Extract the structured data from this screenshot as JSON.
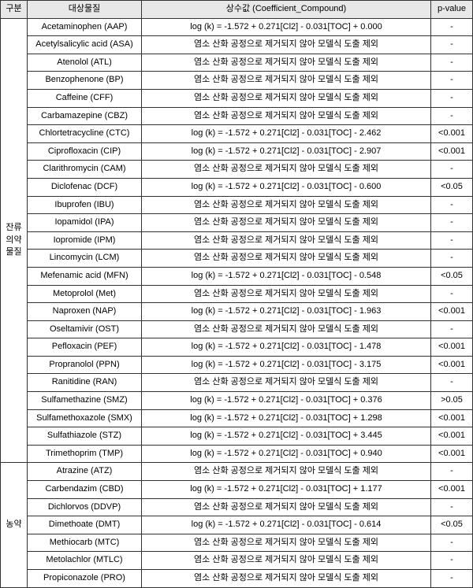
{
  "headers": {
    "category": "구분",
    "compound": "대상물질",
    "coefficient": "상수값 (Coefficient_Compound)",
    "pvalue": "p-value"
  },
  "excluded_text": "염소 산화 공정으로 제거되지 않아 모델식 도출 제외",
  "dash": "-",
  "categories": {
    "pharmaceutical": "잔류\n의약\n물질",
    "pesticide": "농약"
  },
  "pharmaceutical_rows": [
    {
      "compound": "Acetaminophen (AAP)",
      "coeff": "log (k) = -1.572 + 0.271[Cl2] - 0.031[TOC] + 0.000",
      "pvalue": "-"
    },
    {
      "compound": "Acetylsalicylic acid (ASA)",
      "coeff": "염소 산화 공정으로 제거되지 않아 모델식 도출 제외",
      "pvalue": "-"
    },
    {
      "compound": "Atenolol (ATL)",
      "coeff": "염소 산화 공정으로 제거되지 않아 모델식 도출 제외",
      "pvalue": "-"
    },
    {
      "compound": "Benzophenone (BP)",
      "coeff": "염소 산화 공정으로 제거되지 않아 모델식 도출 제외",
      "pvalue": "-"
    },
    {
      "compound": "Caffeine (CFF)",
      "coeff": "염소 산화 공정으로 제거되지 않아 모델식 도출 제외",
      "pvalue": "-"
    },
    {
      "compound": "Carbamazepine (CBZ)",
      "coeff": "염소 산화 공정으로 제거되지 않아 모델식 도출 제외",
      "pvalue": "-"
    },
    {
      "compound": "Chlortetracycline (CTC)",
      "coeff": "log (k) = -1.572 + 0.271[Cl2] - 0.031[TOC] - 2.462",
      "pvalue": "<0.001"
    },
    {
      "compound": "Ciprofloxacin (CIP)",
      "coeff": "log (k) = -1.572 + 0.271[Cl2] - 0.031[TOC] - 2.907",
      "pvalue": "<0.001"
    },
    {
      "compound": "Clarithromycin (CAM)",
      "coeff": "염소 산화 공정으로 제거되지 않아 모델식 도출 제외",
      "pvalue": "-"
    },
    {
      "compound": "Diclofenac (DCF)",
      "coeff": "log (k) = -1.572 + 0.271[Cl2] - 0.031[TOC] - 0.600",
      "pvalue": "<0.05"
    },
    {
      "compound": "Ibuprofen (IBU)",
      "coeff": "염소 산화 공정으로 제거되지 않아 모델식 도출 제외",
      "pvalue": "-"
    },
    {
      "compound": "Iopamidol (IPA)",
      "coeff": "염소 산화 공정으로 제거되지 않아 모델식 도출 제외",
      "pvalue": "-"
    },
    {
      "compound": "Iopromide (IPM)",
      "coeff": "염소 산화 공정으로 제거되지 않아 모델식 도출 제외",
      "pvalue": "-"
    },
    {
      "compound": "Lincomycin (LCM)",
      "coeff": "염소 산화 공정으로 제거되지 않아 모델식 도출 제외",
      "pvalue": "-"
    },
    {
      "compound": "Mefenamic acid (MFN)",
      "coeff": "log (k) = -1.572 + 0.271[Cl2] - 0.031[TOC] - 0.548",
      "pvalue": "<0.05"
    },
    {
      "compound": "Metoprolol (Met)",
      "coeff": "염소 산화 공정으로 제거되지 않아 모델식 도출 제외",
      "pvalue": "-"
    },
    {
      "compound": "Naproxen (NAP)",
      "coeff": "log (k) = -1.572 + 0.271[Cl2] - 0.031[TOC] - 1.963",
      "pvalue": "<0.001"
    },
    {
      "compound": "Oseltamivir (OST)",
      "coeff": "염소 산화 공정으로 제거되지 않아 모델식 도출 제외",
      "pvalue": "-"
    },
    {
      "compound": "Pefloxacin (PEF)",
      "coeff": "log (k) = -1.572 + 0.271[Cl2] - 0.031[TOC] - 1.478",
      "pvalue": "<0.001"
    },
    {
      "compound": "Propranolol (PPN)",
      "coeff": "log (k) = -1.572 + 0.271[Cl2] - 0.031[TOC] - 3.175",
      "pvalue": "<0.001"
    },
    {
      "compound": "Ranitidine (RAN)",
      "coeff": "염소 산화 공정으로 제거되지 않아 모델식 도출 제외",
      "pvalue": "-"
    },
    {
      "compound": "Sulfamethazine (SMZ)",
      "coeff": "log (k) = -1.572 + 0.271[Cl2] - 0.031[TOC] + 0.376",
      "pvalue": ">0.05"
    },
    {
      "compound": "Sulfamethoxazole (SMX)",
      "coeff": "log (k) = -1.572 + 0.271[Cl2] - 0.031[TOC] + 1.298",
      "pvalue": "<0.001"
    },
    {
      "compound": "Sulfathiazole (STZ)",
      "coeff": "log (k) = -1.572 + 0.271[Cl2] - 0.031[TOC] + 3.445",
      "pvalue": "<0.001"
    },
    {
      "compound": "Trimethoprim (TMP)",
      "coeff": "log (k) = -1.572 + 0.271[Cl2] - 0.031[TOC] + 0.940",
      "pvalue": "<0.001"
    }
  ],
  "pesticide_rows": [
    {
      "compound": "Atrazine (ATZ)",
      "coeff": "염소 산화 공정으로 제거되지 않아 모델식 도출 제외",
      "pvalue": "-"
    },
    {
      "compound": "Carbendazim (CBD)",
      "coeff": "log (k) = -1.572 + 0.271[Cl2] - 0.031[TOC] + 1.177",
      "pvalue": "<0.001"
    },
    {
      "compound": "Dichlorvos (DDVP)",
      "coeff": "염소 산화 공정으로 제거되지 않아 모델식 도출 제외",
      "pvalue": "-"
    },
    {
      "compound": "Dimethoate (DMT)",
      "coeff": "log (k) = -1.572 + 0.271[Cl2] - 0.031[TOC] - 0.614",
      "pvalue": "<0.05"
    },
    {
      "compound": "Methiocarb (MTC)",
      "coeff": "염소 산화 공정으로 제거되지 않아 모델식 도출 제외",
      "pvalue": "-"
    },
    {
      "compound": "Metolachlor (MTLC)",
      "coeff": "염소 산화 공정으로 제거되지 않아 모델식 도출 제외",
      "pvalue": "-"
    },
    {
      "compound": "Propiconazole (PRO)",
      "coeff": "염소 산화 공정으로 제거되지 않아 모델식 도출 제외",
      "pvalue": "-"
    }
  ],
  "style": {
    "header_bg": "#e8e8e8",
    "border_color": "#333333",
    "font_size": 11
  }
}
